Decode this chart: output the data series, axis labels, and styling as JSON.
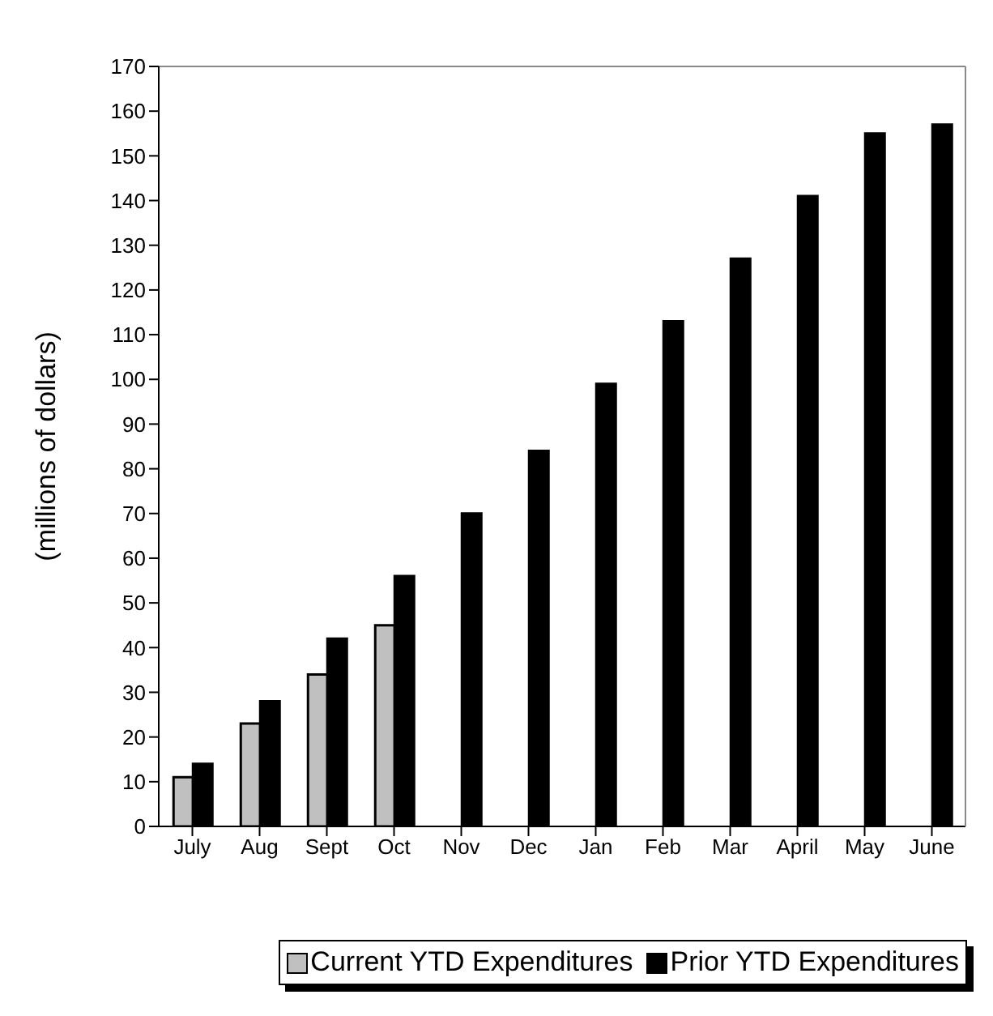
{
  "chart_data": {
    "type": "bar",
    "ylabel": "(millions of dollars)",
    "categories": [
      "July",
      "Aug",
      "Sept",
      "Oct",
      "Nov",
      "Dec",
      "Jan",
      "Feb",
      "Mar",
      "April",
      "May",
      "June"
    ],
    "series": [
      {
        "name": "Current YTD Expenditures",
        "color": "#c0c0c0",
        "values": [
          11,
          23,
          34,
          45,
          null,
          null,
          null,
          null,
          null,
          null,
          null,
          null
        ]
      },
      {
        "name": "Prior YTD Expenditures",
        "color": "#000000",
        "values": [
          14,
          28,
          42,
          56,
          70,
          84,
          99,
          113,
          127,
          141,
          155,
          157
        ]
      }
    ],
    "ylim": [
      0,
      170
    ],
    "yticks": [
      0,
      10,
      20,
      30,
      40,
      50,
      60,
      70,
      80,
      90,
      100,
      110,
      120,
      130,
      140,
      150,
      160,
      170
    ],
    "legend": "bottom right"
  }
}
